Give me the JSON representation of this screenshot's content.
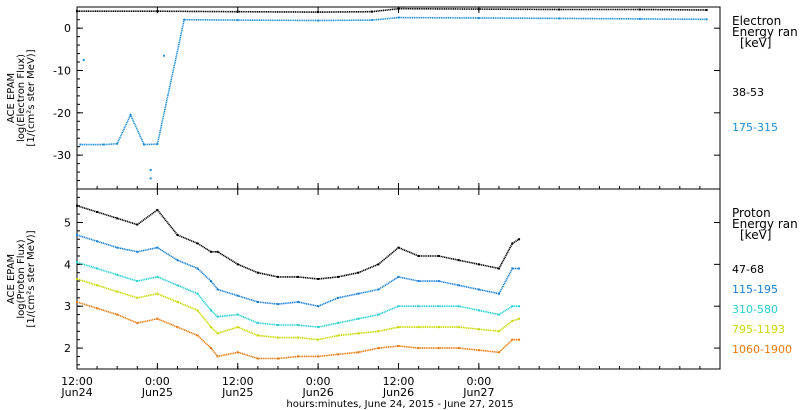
{
  "chart_data": [
    {
      "type": "scatter",
      "ylabel_lines": [
        "ACE EPAM",
        "log(Electron Flux)",
        "[1/(cm²s ster MeV)]"
      ],
      "ylim": [
        -38,
        5
      ],
      "yticks": [
        0,
        -10,
        -20,
        -30
      ],
      "xlim": [
        0,
        96
      ],
      "legend": {
        "title_lines": [
          "Electron",
          "Energy  ran",
          "[keV]"
        ],
        "placement": "right"
      },
      "series": [
        {
          "name": "38-53",
          "color": "#000000",
          "x": [
            0,
            12,
            24,
            36,
            44,
            48,
            60,
            72,
            84,
            94
          ],
          "y": [
            4.0,
            4.0,
            3.9,
            3.8,
            3.9,
            4.6,
            4.5,
            4.4,
            4.4,
            4.3
          ]
        },
        {
          "name": "175-315",
          "color": "#1f8fd8",
          "x": [
            0.5,
            4,
            6,
            8,
            10,
            12,
            16,
            24,
            36,
            44,
            48,
            60,
            72,
            84,
            94
          ],
          "y": [
            -27.5,
            -27.5,
            -27.3,
            -20.5,
            -27.5,
            -27.4,
            2.0,
            1.9,
            1.8,
            1.9,
            2.5,
            2.4,
            2.3,
            2.2,
            2.1
          ],
          "scatter": [
            [
              1,
              -7.5
            ],
            [
              13,
              -6.5
            ],
            [
              11,
              -33.5
            ],
            [
              11,
              -35.5
            ]
          ]
        }
      ]
    },
    {
      "type": "scatter",
      "ylabel_lines": [
        "ACE EPAM",
        "log(Proton Flux)",
        "[1/(cm²s ster MeV)]"
      ],
      "ylim": [
        1.5,
        5.8
      ],
      "yticks": [
        2,
        3,
        4,
        5
      ],
      "xlim": [
        0,
        96
      ],
      "xticks": [
        {
          "hours": 0,
          "lines": [
            "12:00",
            "Jun24"
          ]
        },
        {
          "hours": 12,
          "lines": [
            "0:00",
            "Jun25"
          ]
        },
        {
          "hours": 24,
          "lines": [
            "12:00",
            "Jun25"
          ]
        },
        {
          "hours": 36,
          "lines": [
            "0:00",
            "Jun26"
          ]
        },
        {
          "hours": 48,
          "lines": [
            "12:00",
            "Jun26"
          ]
        },
        {
          "hours": 60,
          "lines": [
            "0:00",
            "Jun27"
          ]
        }
      ],
      "xlabel": "hours:minutes, June 24, 2015 - June 27, 2015",
      "legend": {
        "title_lines": [
          "Proton",
          "Energy  ran",
          "[keV]"
        ],
        "placement": "right"
      },
      "series": [
        {
          "name": "47-68",
          "color": "#000000",
          "x": [
            0,
            3,
            6,
            9,
            12,
            15,
            18,
            20,
            21,
            24,
            27,
            30,
            33,
            36,
            39,
            42,
            45,
            48,
            51,
            54,
            57,
            60,
            63,
            65,
            66
          ],
          "y": [
            5.4,
            5.25,
            5.1,
            4.95,
            5.3,
            4.7,
            4.5,
            4.3,
            4.3,
            4.0,
            3.8,
            3.7,
            3.7,
            3.65,
            3.7,
            3.8,
            4.0,
            4.4,
            4.2,
            4.2,
            4.1,
            4.0,
            3.9,
            4.5,
            4.6
          ]
        },
        {
          "name": "115-195",
          "color": "#1a7fd6",
          "x": [
            0,
            3,
            6,
            9,
            12,
            15,
            18,
            20,
            21,
            24,
            27,
            30,
            33,
            36,
            39,
            42,
            45,
            48,
            51,
            54,
            57,
            60,
            63,
            65,
            66
          ],
          "y": [
            4.7,
            4.55,
            4.4,
            4.3,
            4.4,
            4.1,
            3.9,
            3.6,
            3.4,
            3.25,
            3.1,
            3.05,
            3.1,
            3.0,
            3.2,
            3.3,
            3.4,
            3.7,
            3.6,
            3.6,
            3.5,
            3.4,
            3.3,
            3.9,
            3.9
          ]
        },
        {
          "name": "310-580",
          "color": "#28d0d0",
          "x": [
            0,
            3,
            6,
            9,
            12,
            15,
            18,
            20,
            21,
            24,
            27,
            30,
            33,
            36,
            39,
            42,
            45,
            48,
            51,
            54,
            57,
            60,
            63,
            65,
            66
          ],
          "y": [
            4.05,
            3.9,
            3.75,
            3.6,
            3.7,
            3.5,
            3.3,
            2.9,
            2.75,
            2.8,
            2.6,
            2.55,
            2.55,
            2.5,
            2.6,
            2.7,
            2.8,
            3.0,
            3.0,
            3.0,
            3.0,
            2.9,
            2.8,
            3.0,
            3.0
          ]
        },
        {
          "name": "795-1193",
          "color": "#c8d800",
          "x": [
            0,
            3,
            6,
            9,
            12,
            15,
            18,
            20,
            21,
            24,
            27,
            30,
            33,
            36,
            39,
            42,
            45,
            48,
            51,
            54,
            57,
            60,
            63,
            65,
            66
          ],
          "y": [
            3.65,
            3.5,
            3.35,
            3.2,
            3.3,
            3.1,
            2.9,
            2.5,
            2.35,
            2.5,
            2.3,
            2.25,
            2.25,
            2.2,
            2.3,
            2.35,
            2.4,
            2.5,
            2.5,
            2.5,
            2.5,
            2.45,
            2.4,
            2.65,
            2.7
          ]
        },
        {
          "name": "1060-1900",
          "color": "#e87a10",
          "x": [
            0,
            3,
            6,
            9,
            12,
            15,
            18,
            20,
            21,
            24,
            27,
            30,
            33,
            36,
            39,
            42,
            45,
            48,
            51,
            54,
            57,
            60,
            63,
            65,
            66
          ],
          "y": [
            3.1,
            2.95,
            2.8,
            2.6,
            2.7,
            2.5,
            2.3,
            2.0,
            1.8,
            1.9,
            1.75,
            1.75,
            1.8,
            1.8,
            1.85,
            1.9,
            2.0,
            2.05,
            2.0,
            2.0,
            2.0,
            1.95,
            1.9,
            2.2,
            2.2
          ]
        }
      ]
    }
  ]
}
